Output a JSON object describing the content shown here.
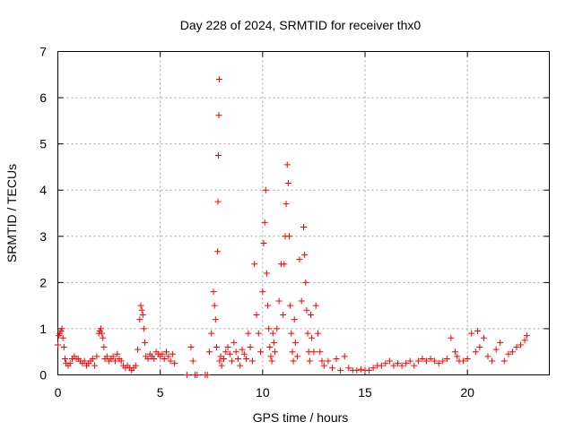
{
  "chart_data": {
    "type": "scatter",
    "title": "Day 228 of 2024, SRMTID for receiver thx0",
    "xlabel": "GPS time / hours",
    "ylabel": "SRMTID / TECUs",
    "xlim": [
      0,
      24
    ],
    "ylim": [
      0,
      7
    ],
    "xticks": [
      0,
      5,
      10,
      15,
      20
    ],
    "yticks": [
      0,
      1,
      2,
      3,
      4,
      5,
      6,
      7
    ],
    "grid": true,
    "marker": "plus",
    "marker_color": "#ff0000",
    "series": [
      {
        "name": "SRMTID",
        "x": [
          0.0,
          0.05,
          0.1,
          0.15,
          0.2,
          0.25,
          0.3,
          0.35,
          0.4,
          0.5,
          0.6,
          0.7,
          0.8,
          0.9,
          1.0,
          1.1,
          1.2,
          1.3,
          1.4,
          1.5,
          1.6,
          1.7,
          1.8,
          1.9,
          2.0,
          2.05,
          2.1,
          2.15,
          2.2,
          2.25,
          2.3,
          2.4,
          2.5,
          2.6,
          2.7,
          2.8,
          2.9,
          3.0,
          3.1,
          3.2,
          3.3,
          3.4,
          3.5,
          3.6,
          3.7,
          3.8,
          3.9,
          4.0,
          4.05,
          4.1,
          4.15,
          4.2,
          4.25,
          4.3,
          4.4,
          4.5,
          4.6,
          4.7,
          4.8,
          4.9,
          5.0,
          5.1,
          5.2,
          5.3,
          5.4,
          5.5,
          5.6,
          5.7,
          6.3,
          6.5,
          6.6,
          6.7,
          6.8,
          7.2,
          7.3,
          7.4,
          7.5,
          7.6,
          7.65,
          7.7,
          7.75,
          7.8,
          7.82,
          7.84,
          7.86,
          7.88,
          7.9,
          7.95,
          8.0,
          8.1,
          8.2,
          8.3,
          8.4,
          8.5,
          8.6,
          8.7,
          8.8,
          8.9,
          9.0,
          9.1,
          9.2,
          9.3,
          9.4,
          9.5,
          9.6,
          9.7,
          9.8,
          9.9,
          10.0,
          10.05,
          10.1,
          10.15,
          10.2,
          10.25,
          10.3,
          10.35,
          10.4,
          10.45,
          10.5,
          10.55,
          10.6,
          10.7,
          10.8,
          10.9,
          11.0,
          11.05,
          11.1,
          11.15,
          11.2,
          11.25,
          11.3,
          11.35,
          11.4,
          11.45,
          11.5,
          11.55,
          11.6,
          11.7,
          11.8,
          11.9,
          12.0,
          12.05,
          12.1,
          12.15,
          12.2,
          12.25,
          12.3,
          12.35,
          12.4,
          12.5,
          12.6,
          12.7,
          12.8,
          12.9,
          13.0,
          13.2,
          13.4,
          13.6,
          13.8,
          14.0,
          14.2,
          14.4,
          14.6,
          14.8,
          15.0,
          15.2,
          15.4,
          15.6,
          15.8,
          16.0,
          16.2,
          16.4,
          16.6,
          16.8,
          17.0,
          17.2,
          17.4,
          17.6,
          17.8,
          18.0,
          18.2,
          18.4,
          18.6,
          18.8,
          19.0,
          19.2,
          19.4,
          19.5,
          19.6,
          19.8,
          20.0,
          20.2,
          20.4,
          20.5,
          20.6,
          20.8,
          21.0,
          21.2,
          21.4,
          21.6,
          21.8,
          22.0,
          22.2,
          22.4,
          22.6,
          22.8,
          22.9
        ],
        "y": [
          0.65,
          0.85,
          0.9,
          0.95,
          1.0,
          0.8,
          0.6,
          0.35,
          0.25,
          0.2,
          0.25,
          0.35,
          0.4,
          0.35,
          0.35,
          0.3,
          0.25,
          0.3,
          0.2,
          0.25,
          0.3,
          0.35,
          0.2,
          0.4,
          0.9,
          0.95,
          1.0,
          0.9,
          0.8,
          0.6,
          0.35,
          0.4,
          0.3,
          0.35,
          0.4,
          0.3,
          0.45,
          0.35,
          0.3,
          0.2,
          0.15,
          0.2,
          0.15,
          0.1,
          0.15,
          0.2,
          0.55,
          1.2,
          1.5,
          1.4,
          1.3,
          1.0,
          0.7,
          0.4,
          0.35,
          0.45,
          0.4,
          0.35,
          0.5,
          0.45,
          0.4,
          0.45,
          0.35,
          0.5,
          0.4,
          0.3,
          0.45,
          0.25,
          0.0,
          0.6,
          0.3,
          0.0,
          0.0,
          0.0,
          0.0,
          0.5,
          0.9,
          1.8,
          1.5,
          1.2,
          0.6,
          2.67,
          3.75,
          4.75,
          5.62,
          6.4,
          0.3,
          0.4,
          0.2,
          0.35,
          0.5,
          0.6,
          0.45,
          0.3,
          0.7,
          0.5,
          0.35,
          0.2,
          0.55,
          0.45,
          0.35,
          0.9,
          0.6,
          0.3,
          2.4,
          1.3,
          0.9,
          0.5,
          1.8,
          2.85,
          3.3,
          4.0,
          2.2,
          1.5,
          1.0,
          0.6,
          0.4,
          0.3,
          0.9,
          0.7,
          0.5,
          1.0,
          1.6,
          2.4,
          1.3,
          2.4,
          3.0,
          3.7,
          4.55,
          4.15,
          3.0,
          1.5,
          0.9,
          0.5,
          0.3,
          1.2,
          0.7,
          0.4,
          2.5,
          1.6,
          3.2,
          2.6,
          2.0,
          1.4,
          0.9,
          0.5,
          0.3,
          1.3,
          0.8,
          0.5,
          1.5,
          0.9,
          0.5,
          0.3,
          0.2,
          0.3,
          0.15,
          0.35,
          0.1,
          0.4,
          0.15,
          0.1,
          0.1,
          0.12,
          0.1,
          0.1,
          0.15,
          0.2,
          0.2,
          0.25,
          0.3,
          0.2,
          0.25,
          0.2,
          0.25,
          0.3,
          0.2,
          0.3,
          0.35,
          0.3,
          0.35,
          0.3,
          0.25,
          0.3,
          0.35,
          0.8,
          0.5,
          0.4,
          0.3,
          0.3,
          0.35,
          0.9,
          0.5,
          0.95,
          0.6,
          0.8,
          0.4,
          0.3,
          0.55,
          0.7,
          0.3,
          0.45,
          0.5,
          0.6,
          0.65,
          0.75,
          0.85
        ]
      }
    ]
  }
}
